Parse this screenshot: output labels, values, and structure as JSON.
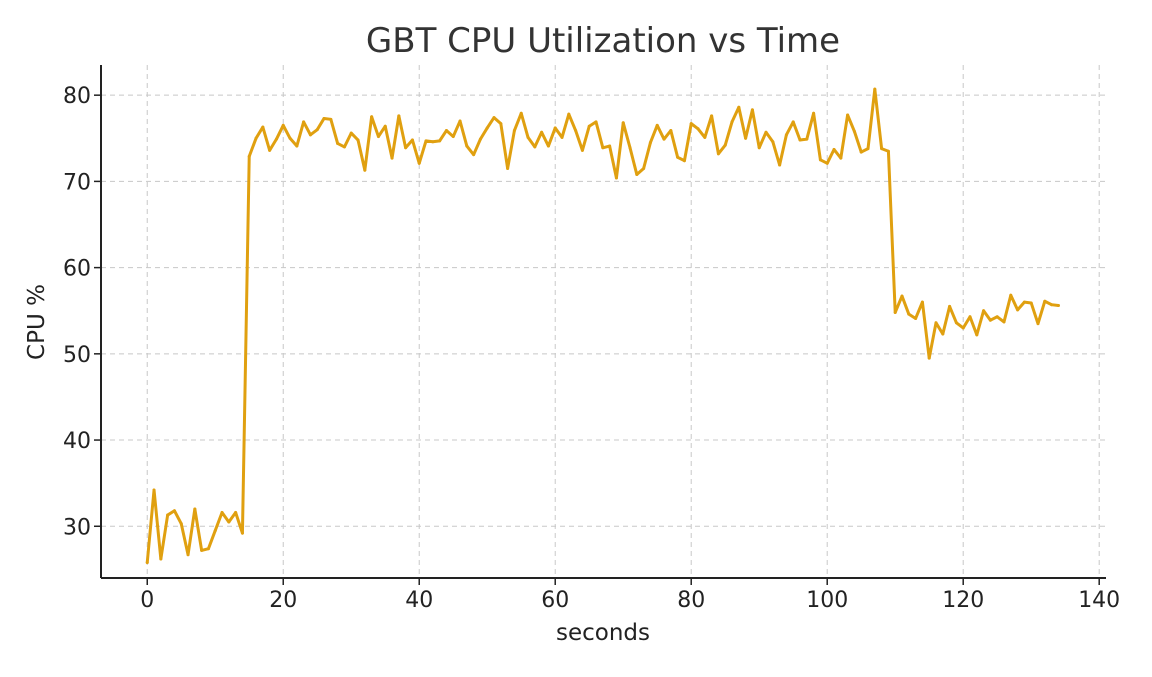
{
  "chart_data": {
    "type": "line",
    "title": "GBT CPU Utilization vs Time",
    "xlabel": "seconds",
    "ylabel": "CPU %",
    "xlim": [
      -6.8,
      141
    ],
    "ylim": [
      24,
      83.5
    ],
    "xticks": [
      0,
      20,
      40,
      60,
      80,
      100,
      120,
      140
    ],
    "yticks": [
      30,
      40,
      50,
      60,
      70,
      80
    ],
    "grid": true,
    "line_color": "#E0A010",
    "series": [
      {
        "x": [
          0,
          1,
          2,
          3,
          4,
          5,
          6,
          7,
          8,
          9,
          10,
          11,
          12,
          13,
          14,
          15,
          16,
          17,
          18,
          19,
          20,
          21,
          22,
          23,
          24,
          25,
          26,
          27,
          28,
          29,
          30,
          31,
          32,
          33,
          34,
          35,
          36,
          37,
          38,
          39,
          40,
          41,
          42,
          43,
          44,
          45,
          46,
          47,
          48,
          49,
          50,
          51,
          52,
          53,
          54,
          55,
          56,
          57,
          58,
          59,
          60,
          61,
          62,
          63,
          64,
          65,
          66,
          67,
          68,
          69,
          70,
          71,
          72,
          73,
          74,
          75,
          76,
          77,
          78,
          79,
          80,
          81,
          82,
          83,
          84,
          85,
          86,
          87,
          88,
          89,
          90,
          91,
          92,
          93,
          94,
          95,
          96,
          97,
          98,
          99,
          100,
          101,
          102,
          103,
          104,
          105,
          106,
          107,
          108,
          109,
          110,
          111,
          112,
          113,
          114,
          115,
          116,
          117,
          118,
          119,
          120,
          121,
          122,
          123,
          124,
          125,
          126,
          127,
          128,
          129,
          130,
          131,
          132,
          133,
          134
        ],
        "values": [
          25.8,
          34.2,
          26.2,
          31.3,
          31.8,
          30.3,
          26.7,
          32.0,
          27.2,
          27.4,
          29.5,
          31.6,
          30.5,
          31.6,
          29.2,
          72.9,
          75.0,
          76.3,
          73.6,
          74.9,
          76.5,
          75.0,
          74.1,
          76.9,
          75.4,
          76.0,
          77.3,
          77.2,
          74.4,
          74.0,
          75.6,
          74.8,
          71.3,
          77.5,
          75.2,
          76.4,
          72.7,
          77.6,
          73.9,
          74.8,
          72.1,
          74.7,
          74.6,
          74.7,
          75.9,
          75.2,
          77.0,
          74.1,
          73.1,
          74.9,
          76.2,
          77.4,
          76.7,
          71.5,
          75.9,
          77.9,
          75.1,
          74.0,
          75.7,
          74.1,
          76.2,
          75.1,
          77.8,
          75.9,
          73.6,
          76.4,
          76.9,
          73.9,
          74.1,
          70.4,
          76.8,
          73.9,
          70.8,
          71.5,
          74.5,
          76.5,
          74.9,
          75.9,
          72.8,
          72.4,
          76.7,
          76.1,
          75.1,
          77.6,
          73.2,
          74.2,
          76.9,
          78.6,
          75.0,
          78.3,
          73.9,
          75.7,
          74.6,
          71.9,
          75.4,
          76.9,
          74.8,
          74.9,
          77.9,
          72.5,
          72.1,
          73.7,
          72.7,
          77.7,
          75.8,
          73.4,
          73.8,
          80.7,
          73.8,
          73.5,
          54.8,
          56.7,
          54.6,
          54.1,
          56.0,
          49.5,
          53.6,
          52.3,
          55.5,
          53.6,
          53.0,
          54.3,
          52.2,
          55.0,
          53.9,
          54.3,
          53.7,
          56.8,
          55.1,
          56.0,
          55.9,
          53.5,
          56.1,
          55.7,
          55.6
        ]
      }
    ]
  }
}
